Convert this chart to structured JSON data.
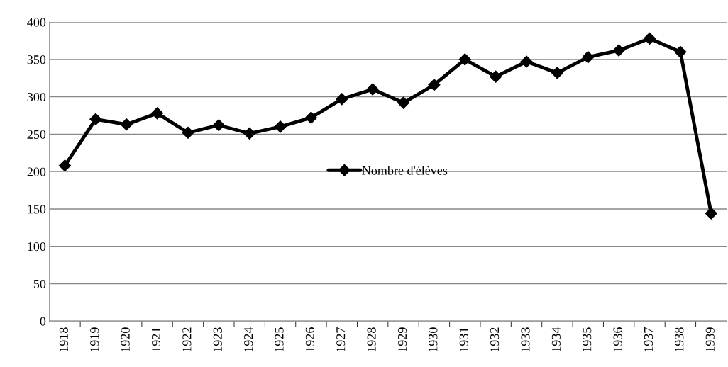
{
  "chart_data": {
    "type": "line",
    "categories": [
      "1918",
      "1919",
      "1920",
      "1921",
      "1922",
      "1923",
      "1924",
      "1925",
      "1926",
      "1927",
      "1928",
      "1929",
      "1930",
      "1931",
      "1932",
      "1933",
      "1934",
      "1935",
      "1936",
      "1937",
      "1938",
      "1939"
    ],
    "series": [
      {
        "name": "Nombre d'élèves",
        "color": "#000000",
        "values": [
          208,
          270,
          263,
          278,
          252,
          262,
          251,
          260,
          272,
          297,
          310,
          292,
          316,
          350,
          327,
          347,
          332,
          353,
          362,
          378,
          360,
          144
        ]
      }
    ],
    "ylim": [
      0,
      400
    ],
    "yticks": [
      0,
      50,
      100,
      150,
      200,
      250,
      300,
      350,
      400
    ],
    "grid": "y",
    "legend": "center",
    "marker": "diamond",
    "line_style": "solid"
  }
}
